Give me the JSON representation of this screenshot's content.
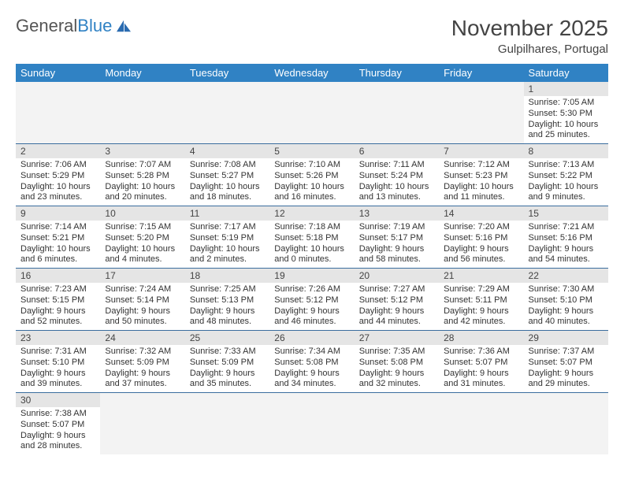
{
  "logo": {
    "text1": "General",
    "text2": "Blue"
  },
  "title": "November 2025",
  "location": "Gulpilhares, Portugal",
  "colors": {
    "header_bg": "#3082c4",
    "header_text": "#ffffff",
    "daynum_bg": "#e5e5e5",
    "cell_border": "#3a6d9e",
    "empty_bg": "#f3f3f3",
    "text": "#333333",
    "logo_blue": "#3082c4"
  },
  "weekdays": [
    "Sunday",
    "Monday",
    "Tuesday",
    "Wednesday",
    "Thursday",
    "Friday",
    "Saturday"
  ],
  "weeks": [
    [
      null,
      null,
      null,
      null,
      null,
      null,
      {
        "n": "1",
        "sr": "Sunrise: 7:05 AM",
        "ss": "Sunset: 5:30 PM",
        "d1": "Daylight: 10 hours",
        "d2": "and 25 minutes."
      }
    ],
    [
      {
        "n": "2",
        "sr": "Sunrise: 7:06 AM",
        "ss": "Sunset: 5:29 PM",
        "d1": "Daylight: 10 hours",
        "d2": "and 23 minutes."
      },
      {
        "n": "3",
        "sr": "Sunrise: 7:07 AM",
        "ss": "Sunset: 5:28 PM",
        "d1": "Daylight: 10 hours",
        "d2": "and 20 minutes."
      },
      {
        "n": "4",
        "sr": "Sunrise: 7:08 AM",
        "ss": "Sunset: 5:27 PM",
        "d1": "Daylight: 10 hours",
        "d2": "and 18 minutes."
      },
      {
        "n": "5",
        "sr": "Sunrise: 7:10 AM",
        "ss": "Sunset: 5:26 PM",
        "d1": "Daylight: 10 hours",
        "d2": "and 16 minutes."
      },
      {
        "n": "6",
        "sr": "Sunrise: 7:11 AM",
        "ss": "Sunset: 5:24 PM",
        "d1": "Daylight: 10 hours",
        "d2": "and 13 minutes."
      },
      {
        "n": "7",
        "sr": "Sunrise: 7:12 AM",
        "ss": "Sunset: 5:23 PM",
        "d1": "Daylight: 10 hours",
        "d2": "and 11 minutes."
      },
      {
        "n": "8",
        "sr": "Sunrise: 7:13 AM",
        "ss": "Sunset: 5:22 PM",
        "d1": "Daylight: 10 hours",
        "d2": "and 9 minutes."
      }
    ],
    [
      {
        "n": "9",
        "sr": "Sunrise: 7:14 AM",
        "ss": "Sunset: 5:21 PM",
        "d1": "Daylight: 10 hours",
        "d2": "and 6 minutes."
      },
      {
        "n": "10",
        "sr": "Sunrise: 7:15 AM",
        "ss": "Sunset: 5:20 PM",
        "d1": "Daylight: 10 hours",
        "d2": "and 4 minutes."
      },
      {
        "n": "11",
        "sr": "Sunrise: 7:17 AM",
        "ss": "Sunset: 5:19 PM",
        "d1": "Daylight: 10 hours",
        "d2": "and 2 minutes."
      },
      {
        "n": "12",
        "sr": "Sunrise: 7:18 AM",
        "ss": "Sunset: 5:18 PM",
        "d1": "Daylight: 10 hours",
        "d2": "and 0 minutes."
      },
      {
        "n": "13",
        "sr": "Sunrise: 7:19 AM",
        "ss": "Sunset: 5:17 PM",
        "d1": "Daylight: 9 hours",
        "d2": "and 58 minutes."
      },
      {
        "n": "14",
        "sr": "Sunrise: 7:20 AM",
        "ss": "Sunset: 5:16 PM",
        "d1": "Daylight: 9 hours",
        "d2": "and 56 minutes."
      },
      {
        "n": "15",
        "sr": "Sunrise: 7:21 AM",
        "ss": "Sunset: 5:16 PM",
        "d1": "Daylight: 9 hours",
        "d2": "and 54 minutes."
      }
    ],
    [
      {
        "n": "16",
        "sr": "Sunrise: 7:23 AM",
        "ss": "Sunset: 5:15 PM",
        "d1": "Daylight: 9 hours",
        "d2": "and 52 minutes."
      },
      {
        "n": "17",
        "sr": "Sunrise: 7:24 AM",
        "ss": "Sunset: 5:14 PM",
        "d1": "Daylight: 9 hours",
        "d2": "and 50 minutes."
      },
      {
        "n": "18",
        "sr": "Sunrise: 7:25 AM",
        "ss": "Sunset: 5:13 PM",
        "d1": "Daylight: 9 hours",
        "d2": "and 48 minutes."
      },
      {
        "n": "19",
        "sr": "Sunrise: 7:26 AM",
        "ss": "Sunset: 5:12 PM",
        "d1": "Daylight: 9 hours",
        "d2": "and 46 minutes."
      },
      {
        "n": "20",
        "sr": "Sunrise: 7:27 AM",
        "ss": "Sunset: 5:12 PM",
        "d1": "Daylight: 9 hours",
        "d2": "and 44 minutes."
      },
      {
        "n": "21",
        "sr": "Sunrise: 7:29 AM",
        "ss": "Sunset: 5:11 PM",
        "d1": "Daylight: 9 hours",
        "d2": "and 42 minutes."
      },
      {
        "n": "22",
        "sr": "Sunrise: 7:30 AM",
        "ss": "Sunset: 5:10 PM",
        "d1": "Daylight: 9 hours",
        "d2": "and 40 minutes."
      }
    ],
    [
      {
        "n": "23",
        "sr": "Sunrise: 7:31 AM",
        "ss": "Sunset: 5:10 PM",
        "d1": "Daylight: 9 hours",
        "d2": "and 39 minutes."
      },
      {
        "n": "24",
        "sr": "Sunrise: 7:32 AM",
        "ss": "Sunset: 5:09 PM",
        "d1": "Daylight: 9 hours",
        "d2": "and 37 minutes."
      },
      {
        "n": "25",
        "sr": "Sunrise: 7:33 AM",
        "ss": "Sunset: 5:09 PM",
        "d1": "Daylight: 9 hours",
        "d2": "and 35 minutes."
      },
      {
        "n": "26",
        "sr": "Sunrise: 7:34 AM",
        "ss": "Sunset: 5:08 PM",
        "d1": "Daylight: 9 hours",
        "d2": "and 34 minutes."
      },
      {
        "n": "27",
        "sr": "Sunrise: 7:35 AM",
        "ss": "Sunset: 5:08 PM",
        "d1": "Daylight: 9 hours",
        "d2": "and 32 minutes."
      },
      {
        "n": "28",
        "sr": "Sunrise: 7:36 AM",
        "ss": "Sunset: 5:07 PM",
        "d1": "Daylight: 9 hours",
        "d2": "and 31 minutes."
      },
      {
        "n": "29",
        "sr": "Sunrise: 7:37 AM",
        "ss": "Sunset: 5:07 PM",
        "d1": "Daylight: 9 hours",
        "d2": "and 29 minutes."
      }
    ],
    [
      {
        "n": "30",
        "sr": "Sunrise: 7:38 AM",
        "ss": "Sunset: 5:07 PM",
        "d1": "Daylight: 9 hours",
        "d2": "and 28 minutes."
      },
      null,
      null,
      null,
      null,
      null,
      null
    ]
  ]
}
